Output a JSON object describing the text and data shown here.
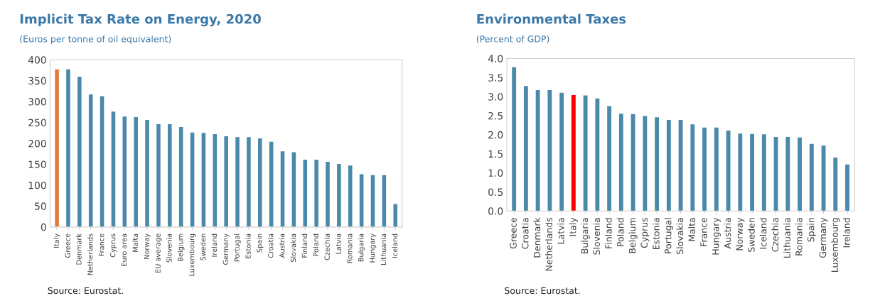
{
  "chart_data": [
    {
      "type": "bar",
      "title": "Implicit Tax Rate on Energy, 2020",
      "subtitle": "(Euros per tonne of oil equivalent)",
      "categories": [
        "Italy",
        "Greece",
        "Denmark",
        "Netherlands",
        "France",
        "Cyprus",
        "Euro area",
        "Malta",
        "Norway",
        "EU average",
        "Slovenia",
        "Belgium",
        "Luxembourg",
        "Sweden",
        "Ireland",
        "Germany",
        "Portugal",
        "Estonia",
        "Spain",
        "Croatia",
        "Austria",
        "Slovakia",
        "Finland",
        "Poland",
        "Czechia",
        "Latvia",
        "Romania",
        "Bulgaria",
        "Hungary",
        "Lithuania",
        "Iceland"
      ],
      "values": [
        377,
        377,
        359,
        317,
        313,
        276,
        264,
        263,
        256,
        246,
        246,
        239,
        226,
        225,
        222,
        217,
        215,
        215,
        212,
        204,
        181,
        179,
        161,
        161,
        156,
        151,
        147,
        126,
        124,
        124,
        55
      ],
      "colors": [
        "#e07b39",
        "#4a89aa",
        "#4a89aa",
        "#4a89aa",
        "#4a89aa",
        "#4a89aa",
        "#4a89aa",
        "#4a89aa",
        "#4a89aa",
        "#4a89aa",
        "#4a89aa",
        "#4a89aa",
        "#4a89aa",
        "#4a89aa",
        "#4a89aa",
        "#4a89aa",
        "#4a89aa",
        "#4a89aa",
        "#4a89aa",
        "#4a89aa",
        "#4a89aa",
        "#4a89aa",
        "#4a89aa",
        "#4a89aa",
        "#4a89aa",
        "#4a89aa",
        "#4a89aa",
        "#4a89aa",
        "#4a89aa",
        "#4a89aa",
        "#4a89aa"
      ],
      "ylim": [
        0,
        400
      ],
      "yticks": [
        0,
        50,
        100,
        150,
        200,
        250,
        300,
        350,
        400
      ],
      "grid": false,
      "legend": false,
      "annotations": [
        "Source: Eurostat."
      ]
    },
    {
      "type": "bar",
      "title": "Environmental Taxes",
      "subtitle": "(Percent of GDP)",
      "categories": [
        "Greece",
        "Croatia",
        "Denmark",
        "Netherlands",
        "Latvia",
        "Italy",
        "Bulgaria",
        "Slovenia",
        "Finland",
        "Poland",
        "Belgium",
        "Cyprus",
        "Estonia",
        "Portugal",
        "Slovakia",
        "Malta",
        "France",
        "Hungary",
        "Austria",
        "Norway",
        "Sweden",
        "Iceland",
        "Czechia",
        "Lithuania",
        "Romania",
        "Spain",
        "Germany",
        "Luxembourg",
        "Ireland"
      ],
      "values": [
        3.77,
        3.28,
        3.17,
        3.17,
        3.1,
        3.04,
        3.03,
        2.95,
        2.75,
        2.55,
        2.54,
        2.49,
        2.46,
        2.39,
        2.39,
        2.27,
        2.19,
        2.19,
        2.11,
        2.03,
        2.02,
        2.01,
        1.94,
        1.94,
        1.93,
        1.76,
        1.72,
        1.4,
        1.22
      ],
      "colors": [
        "#4a89aa",
        "#4a89aa",
        "#4a89aa",
        "#4a89aa",
        "#4a89aa",
        "#ff0000",
        "#4a89aa",
        "#4a89aa",
        "#4a89aa",
        "#4a89aa",
        "#4a89aa",
        "#4a89aa",
        "#4a89aa",
        "#4a89aa",
        "#4a89aa",
        "#4a89aa",
        "#4a89aa",
        "#4a89aa",
        "#4a89aa",
        "#4a89aa",
        "#4a89aa",
        "#4a89aa",
        "#4a89aa",
        "#4a89aa",
        "#4a89aa",
        "#4a89aa",
        "#4a89aa",
        "#4a89aa",
        "#4a89aa"
      ],
      "ylim": [
        0,
        4.0
      ],
      "yticks": [
        {
          "value": 0,
          "label": "0.0"
        },
        {
          "value": 0.5,
          "label": "0.5"
        },
        {
          "value": 1.0,
          "label": "1.0"
        },
        {
          "value": 1.5,
          "label": "1.5"
        },
        {
          "value": 2.0,
          "label": "2.0"
        },
        {
          "value": 2.5,
          "label": "2.5"
        },
        {
          "value": 3.0,
          "label": "3.0"
        },
        {
          "value": 3.5,
          "label": "3.5"
        },
        {
          "value": 4.0,
          "label": "4.0"
        }
      ],
      "grid": false,
      "legend": false,
      "annotations": [
        "Source: Eurostat."
      ]
    }
  ]
}
